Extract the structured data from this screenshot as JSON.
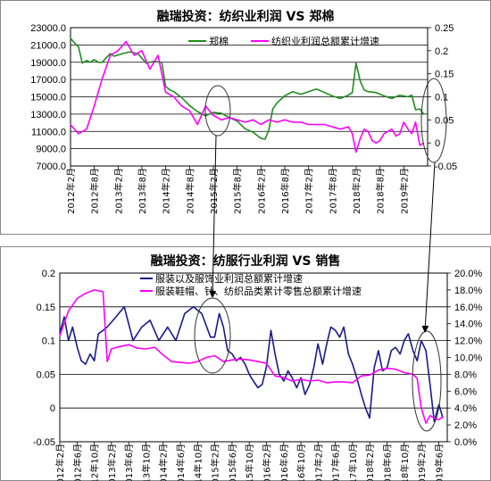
{
  "chart_data": [
    {
      "type": "line",
      "title": "融瑞投资：纺织业利润  VS  郑棉",
      "y_left": {
        "min": 7000,
        "max": 23000,
        "step": 2000,
        "ticks": [
          "23000.0",
          "21000.0",
          "19000.0",
          "17000.0",
          "15000.0",
          "13000.0",
          "11000.0",
          "9000.0",
          "7000.0"
        ]
      },
      "y_right": {
        "min": -0.05,
        "max": 0.25,
        "step": 0.05,
        "ticks": [
          "0.25",
          "0.2",
          "0.15",
          "0.1",
          "0.05",
          "0",
          "-0.05"
        ]
      },
      "x_range": [
        2012.083,
        2019.583
      ],
      "x_ticks": [
        "2012年2月",
        "2012年8月",
        "2013年2月",
        "2013年8月",
        "2014年2月",
        "2014年8月",
        "2015年2月",
        "2015年8月",
        "2016年2月",
        "2016年8月",
        "2017年2月",
        "2017年8月",
        "2018年2月",
        "2018年8月",
        "2019年2月"
      ],
      "x_tick_positions": [
        2012.083,
        2012.583,
        2013.083,
        2013.583,
        2014.083,
        2014.583,
        2015.083,
        2015.583,
        2016.083,
        2016.583,
        2017.083,
        2017.583,
        2018.083,
        2018.583,
        2019.083
      ],
      "grid": true,
      "legend_position": "top-right",
      "series": [
        {
          "name": "郑棉",
          "axis": "left",
          "color": "#1f8c1f",
          "x": [
            2012.08,
            2012.17,
            2012.25,
            2012.33,
            2012.42,
            2012.5,
            2012.58,
            2012.67,
            2012.75,
            2012.83,
            2012.92,
            2013.0,
            2013.17,
            2013.33,
            2013.5,
            2013.67,
            2013.83,
            2014.0,
            2014.08,
            2014.17,
            2014.25,
            2014.42,
            2014.58,
            2014.75,
            2014.92,
            2015.08,
            2015.25,
            2015.42,
            2015.58,
            2015.75,
            2015.92,
            2016.08,
            2016.17,
            2016.25,
            2016.33,
            2016.42,
            2016.58,
            2016.75,
            2016.92,
            2017.08,
            2017.25,
            2017.42,
            2017.58,
            2017.75,
            2017.92,
            2018.0,
            2018.08,
            2018.17,
            2018.25,
            2018.33,
            2018.5,
            2018.67,
            2018.83,
            2019.0,
            2019.17,
            2019.25,
            2019.33,
            2019.42,
            2019.5
          ],
          "y": [
            21800,
            21200,
            20800,
            18900,
            19200,
            19000,
            19300,
            19000,
            19000,
            19500,
            20000,
            19700,
            20000,
            20200,
            20000,
            18900,
            19100,
            19000,
            16200,
            15800,
            15600,
            14900,
            14000,
            13300,
            12800,
            13200,
            13100,
            12600,
            12200,
            11300,
            10900,
            10200,
            10100,
            11200,
            13600,
            14300,
            15100,
            15600,
            15300,
            15600,
            15900,
            15500,
            15100,
            14800,
            15200,
            15500,
            18900,
            16800,
            15800,
            15600,
            15500,
            15100,
            14800,
            15200,
            15000,
            15200,
            13500,
            13600,
            13000
          ]
        },
        {
          "name": "纺织业利润总额累计增速",
          "axis": "right",
          "color": "#ff00ff",
          "x": [
            2012.08,
            2012.25,
            2012.42,
            2012.58,
            2012.75,
            2012.92,
            2013.08,
            2013.25,
            2013.42,
            2013.58,
            2013.75,
            2013.92,
            2014.08,
            2014.25,
            2014.42,
            2014.58,
            2014.75,
            2014.92,
            2015.08,
            2015.25,
            2015.42,
            2015.58,
            2015.75,
            2015.92,
            2016.08,
            2016.25,
            2016.42,
            2016.58,
            2016.75,
            2016.92,
            2017.08,
            2017.25,
            2017.42,
            2017.58,
            2017.75,
            2017.92,
            2018.0,
            2018.08,
            2018.17,
            2018.25,
            2018.33,
            2018.42,
            2018.5,
            2018.58,
            2018.67,
            2018.75,
            2018.83,
            2018.92,
            2019.0,
            2019.08,
            2019.17,
            2019.25,
            2019.33,
            2019.42,
            2019.5
          ],
          "y": [
            0.04,
            0.02,
            0.03,
            0.08,
            0.14,
            0.19,
            0.2,
            0.22,
            0.19,
            0.2,
            0.16,
            0.19,
            0.11,
            0.1,
            0.08,
            0.07,
            0.04,
            0.08,
            0.06,
            0.05,
            0.055,
            0.05,
            0.045,
            0.05,
            0.04,
            0.05,
            0.045,
            0.05,
            0.045,
            0.045,
            0.04,
            0.04,
            0.04,
            0.035,
            0.03,
            0.035,
            0.02,
            -0.02,
            0.01,
            0.03,
            0.025,
            0.005,
            0.0,
            0.005,
            0.02,
            0.025,
            0.03,
            0.015,
            0.02,
            0.045,
            0.03,
            0.02,
            0.045,
            -0.005,
            0.0
          ]
        }
      ],
      "annotations": [
        "ellipse around 2015年2月",
        "ellipse around 2019年5月"
      ]
    },
    {
      "type": "line",
      "title": "融瑞投资：纺服行业利润  VS  销售",
      "y_left": {
        "min": -0.05,
        "max": 0.2,
        "step": 0.05,
        "ticks": [
          "0.2",
          "0.15",
          "0.1",
          "0.05",
          "0",
          "-0.05"
        ]
      },
      "y_right": {
        "min": 0,
        "max": 20,
        "step": 2,
        "ticks": [
          "20.0%",
          "18.0%",
          "16.0%",
          "14.0%",
          "12.0%",
          "10.0%",
          "8.0%",
          "6.0%",
          "4.0%",
          "2.0%",
          "0.0%"
        ]
      },
      "x_range": [
        2012.083,
        2019.583
      ],
      "x_ticks": [
        "2012年2月",
        "2012年6月",
        "2012年10月",
        "2013年2月",
        "2013年6月",
        "2013年10月",
        "2014年2月",
        "2014年6月",
        "2014年10月",
        "2015年2月",
        "2015年6月",
        "2015年10月",
        "2016年2月",
        "2016年6月",
        "2016年10月",
        "2017年2月",
        "2017年6月",
        "2017年10月",
        "2018年2月",
        "2018年6月",
        "2018年10月",
        "2019年2月",
        "2019年6月"
      ],
      "x_tick_positions": [
        2012.083,
        2012.417,
        2012.75,
        2013.083,
        2013.417,
        2013.75,
        2014.083,
        2014.417,
        2014.75,
        2015.083,
        2015.417,
        2015.75,
        2016.083,
        2016.417,
        2016.75,
        2017.083,
        2017.417,
        2017.75,
        2018.083,
        2018.417,
        2018.75,
        2019.083,
        2019.417
      ],
      "grid": true,
      "legend_position": "top-center",
      "series": [
        {
          "name": "服装以及服饰业利润总额累计增速",
          "axis": "left",
          "color": "#1a1a8c",
          "x": [
            2012.08,
            2012.17,
            2012.25,
            2012.33,
            2012.42,
            2012.5,
            2012.58,
            2012.67,
            2012.75,
            2012.83,
            2012.92,
            2013.0,
            2013.17,
            2013.33,
            2013.5,
            2013.67,
            2013.83,
            2014.0,
            2014.17,
            2014.33,
            2014.5,
            2014.67,
            2014.83,
            2015.0,
            2015.08,
            2015.17,
            2015.25,
            2015.33,
            2015.42,
            2015.5,
            2015.58,
            2015.67,
            2015.75,
            2015.83,
            2015.92,
            2016.0,
            2016.08,
            2016.17,
            2016.25,
            2016.33,
            2016.42,
            2016.5,
            2016.58,
            2016.67,
            2016.75,
            2016.83,
            2016.92,
            2017.0,
            2017.08,
            2017.17,
            2017.25,
            2017.33,
            2017.42,
            2017.5,
            2017.58,
            2017.67,
            2017.75,
            2017.83,
            2017.92,
            2018.0,
            2018.08,
            2018.17,
            2018.25,
            2018.33,
            2018.42,
            2018.5,
            2018.58,
            2018.67,
            2018.75,
            2018.83,
            2018.92,
            2019.0,
            2019.08,
            2019.17,
            2019.25,
            2019.33,
            2019.42,
            2019.5
          ],
          "y": [
            0.11,
            0.135,
            0.1,
            0.12,
            0.09,
            0.07,
            0.065,
            0.08,
            0.07,
            0.11,
            0.115,
            0.12,
            0.135,
            0.15,
            0.1,
            0.12,
            0.13,
            0.1,
            0.12,
            0.1,
            0.14,
            0.15,
            0.14,
            0.105,
            0.105,
            0.14,
            0.12,
            0.085,
            0.08,
            0.07,
            0.075,
            0.065,
            0.05,
            0.04,
            0.03,
            0.035,
            0.06,
            0.115,
            0.08,
            0.05,
            0.04,
            0.055,
            0.045,
            0.03,
            0.045,
            0.02,
            0.035,
            0.06,
            0.095,
            0.065,
            0.095,
            0.12,
            0.115,
            0.105,
            0.12,
            0.08,
            0.065,
            0.045,
            0.02,
            0.0,
            -0.015,
            0.06,
            0.085,
            0.055,
            0.06,
            0.085,
            0.09,
            0.08,
            0.1,
            0.11,
            0.085,
            0.07,
            0.1,
            0.085,
            0.035,
            -0.02,
            0.005,
            -0.015
          ]
        },
        {
          "name": "服装鞋帽、针、纺织品类累计零售总额累计增速",
          "axis": "right",
          "color": "#ff00ff",
          "x": [
            2012.08,
            2012.25,
            2012.42,
            2012.58,
            2012.75,
            2012.92,
            2013.0,
            2013.08,
            2013.25,
            2013.42,
            2013.58,
            2013.75,
            2013.92,
            2014.08,
            2014.25,
            2014.42,
            2014.58,
            2014.75,
            2014.92,
            2015.08,
            2015.25,
            2015.42,
            2015.58,
            2015.75,
            2015.92,
            2016.08,
            2016.25,
            2016.42,
            2016.58,
            2016.75,
            2016.92,
            2017.08,
            2017.25,
            2017.42,
            2017.58,
            2017.75,
            2017.92,
            2018.08,
            2018.25,
            2018.42,
            2018.58,
            2018.75,
            2018.92,
            2019.0,
            2019.08,
            2019.17,
            2019.25,
            2019.33,
            2019.42,
            2019.5
          ],
          "y": [
            12.5,
            15.5,
            17.0,
            17.6,
            18.0,
            17.8,
            9.5,
            11.0,
            11.3,
            11.5,
            11.1,
            11.0,
            11.2,
            10.3,
            9.5,
            9.4,
            9.3,
            9.5,
            10.0,
            10.2,
            9.5,
            9.7,
            9.8,
            9.7,
            9.5,
            9.3,
            7.8,
            7.6,
            7.2,
            7.4,
            7.2,
            7.3,
            7.0,
            7.1,
            7.1,
            7.0,
            7.8,
            7.9,
            8.5,
            8.7,
            8.6,
            8.2,
            8.0,
            7.5,
            4.0,
            2.2,
            3.1,
            2.8,
            2.6,
            3.0
          ]
        }
      ],
      "annotations": [
        "ellipse around 2015年2月",
        "ellipse around 2019年5月"
      ]
    }
  ]
}
